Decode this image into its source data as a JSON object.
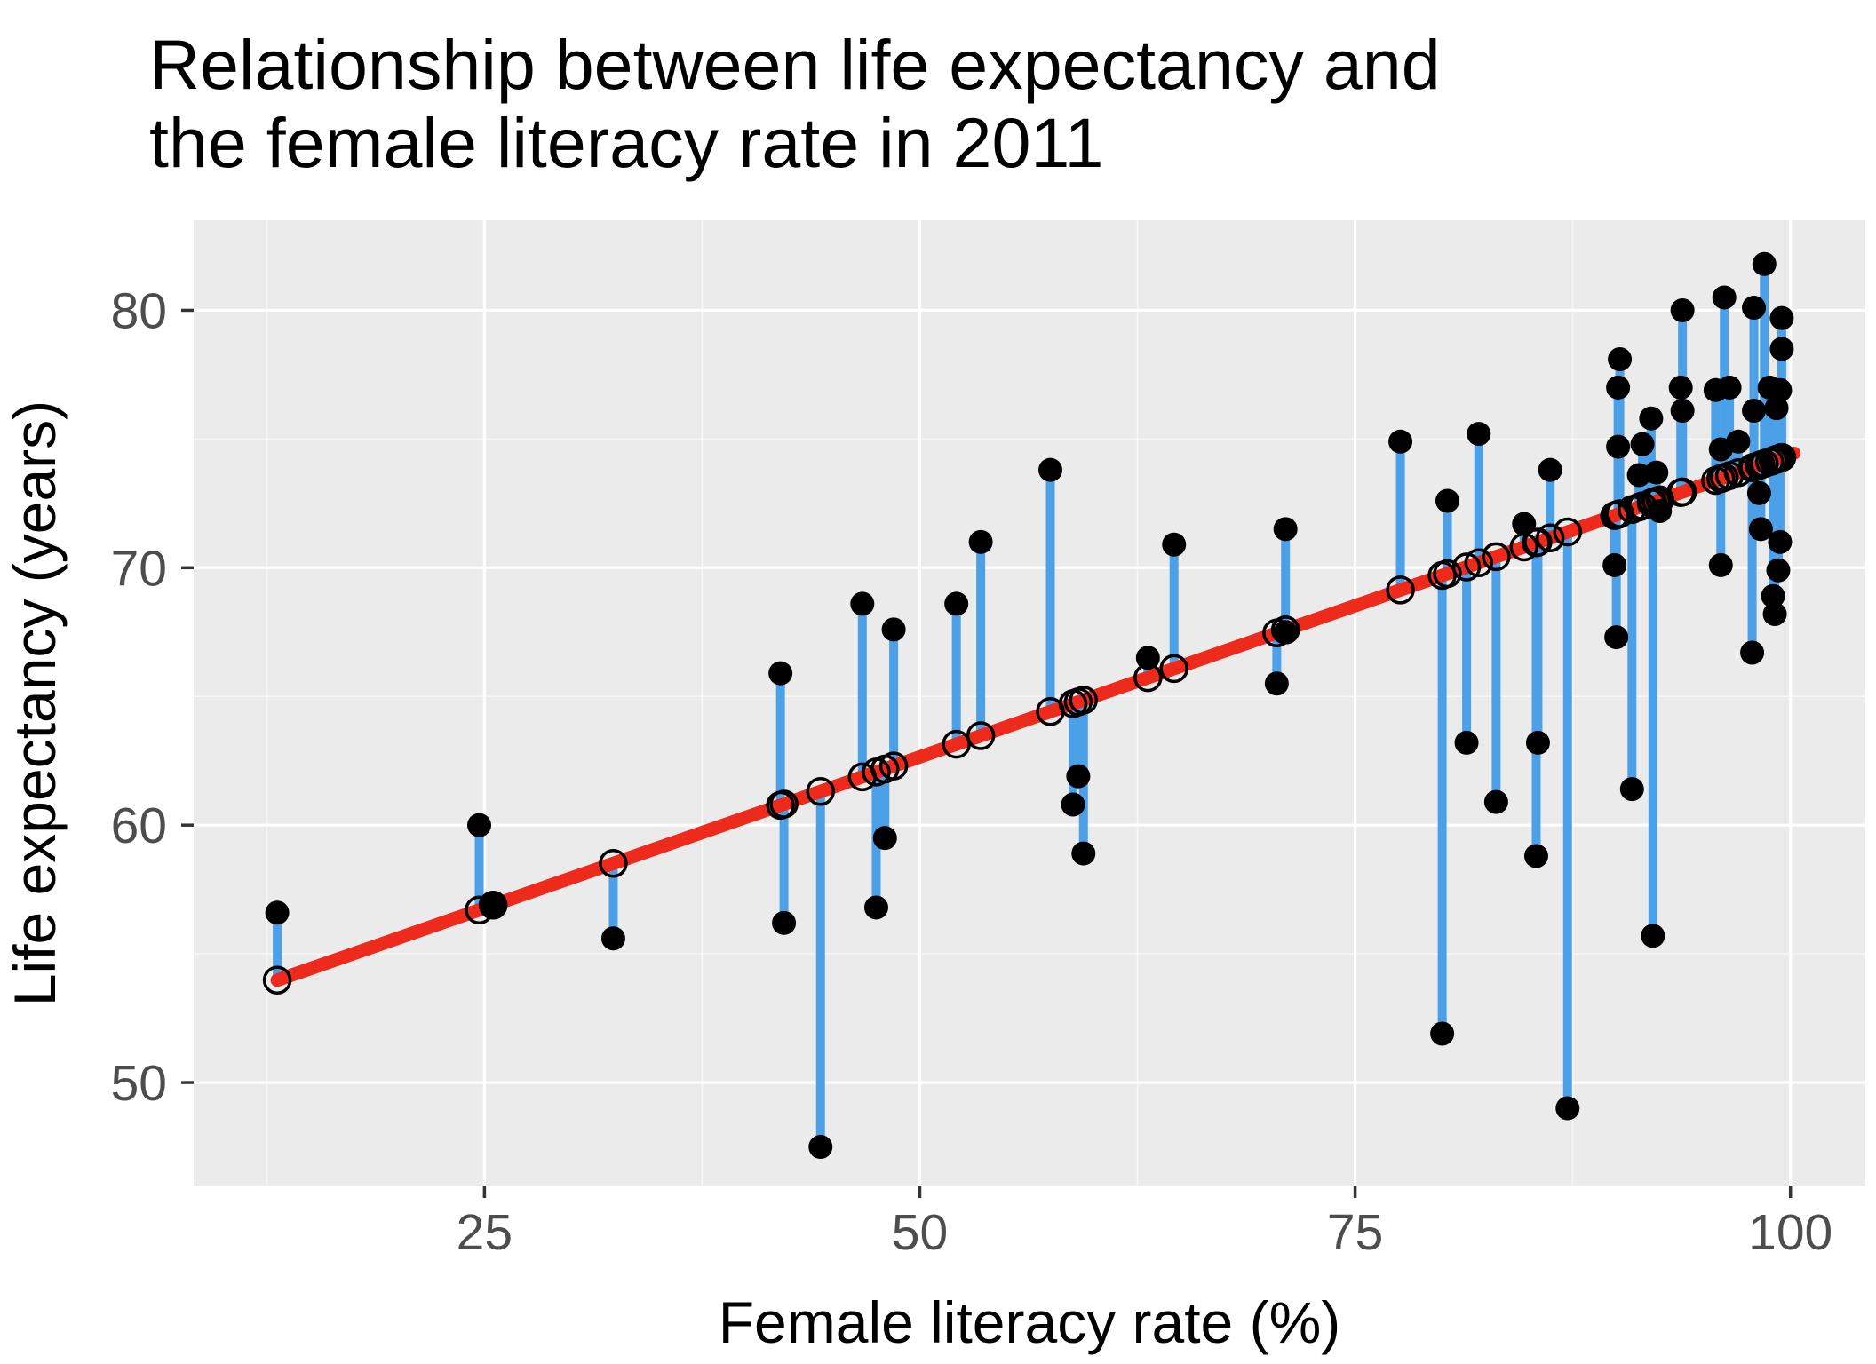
{
  "chart_data": {
    "type": "scatter",
    "title_line1": "Relationship between life expectancy and",
    "title_line2": " the female literacy rate in 2011",
    "xlabel": "Female literacy rate (%)",
    "ylabel": "Life expectancy (years)",
    "xlim": [
      8.3,
      104.3
    ],
    "ylim": [
      46.0,
      83.5
    ],
    "x_ticks": [
      25,
      50,
      75,
      100
    ],
    "y_ticks": [
      50,
      60,
      70,
      80
    ],
    "x_minor_ticks": [
      12.5,
      37.5,
      62.5,
      87.5
    ],
    "y_minor_ticks": [
      55,
      65,
      75
    ],
    "grid": true,
    "legend_position": "none",
    "regression_line": {
      "intercept": 50.9,
      "slope": 0.235,
      "x_start": 13.1,
      "x_end": 100.2
    },
    "series_note": "black dots = observed (literacy %, life expectancy yrs); open circles = fitted values on red regression line; blue segments = residuals",
    "points": [
      {
        "x": 13.1,
        "y": 56.6
      },
      {
        "x": 24.7,
        "y": 60.0
      },
      {
        "x": 25.5,
        "y": 56.9
      },
      {
        "x": 32.4,
        "y": 55.6
      },
      {
        "x": 42.0,
        "y": 65.9
      },
      {
        "x": 42.2,
        "y": 56.2
      },
      {
        "x": 44.3,
        "y": 47.5
      },
      {
        "x": 46.7,
        "y": 68.6
      },
      {
        "x": 47.5,
        "y": 56.8
      },
      {
        "x": 48.0,
        "y": 59.5
      },
      {
        "x": 48.5,
        "y": 67.6
      },
      {
        "x": 52.1,
        "y": 68.6
      },
      {
        "x": 53.5,
        "y": 71.0
      },
      {
        "x": 57.5,
        "y": 73.8
      },
      {
        "x": 58.8,
        "y": 60.8
      },
      {
        "x": 59.1,
        "y": 61.9
      },
      {
        "x": 59.4,
        "y": 58.9
      },
      {
        "x": 63.1,
        "y": 66.5
      },
      {
        "x": 64.6,
        "y": 70.9
      },
      {
        "x": 70.5,
        "y": 65.5
      },
      {
        "x": 71.0,
        "y": 67.5
      },
      {
        "x": 71.0,
        "y": 71.5
      },
      {
        "x": 77.6,
        "y": 74.9
      },
      {
        "x": 80.0,
        "y": 51.9
      },
      {
        "x": 80.3,
        "y": 72.6
      },
      {
        "x": 81.4,
        "y": 63.2
      },
      {
        "x": 82.1,
        "y": 75.2
      },
      {
        "x": 83.1,
        "y": 60.9
      },
      {
        "x": 84.7,
        "y": 71.7
      },
      {
        "x": 85.4,
        "y": 58.8
      },
      {
        "x": 85.5,
        "y": 63.2
      },
      {
        "x": 86.2,
        "y": 73.8
      },
      {
        "x": 87.2,
        "y": 49.0
      },
      {
        "x": 89.9,
        "y": 70.1
      },
      {
        "x": 90.0,
        "y": 67.3
      },
      {
        "x": 90.1,
        "y": 74.7
      },
      {
        "x": 90.1,
        "y": 77.0
      },
      {
        "x": 90.2,
        "y": 78.1
      },
      {
        "x": 90.9,
        "y": 61.4
      },
      {
        "x": 91.3,
        "y": 73.6
      },
      {
        "x": 91.5,
        "y": 74.8
      },
      {
        "x": 92.0,
        "y": 75.8
      },
      {
        "x": 92.1,
        "y": 55.7
      },
      {
        "x": 92.3,
        "y": 73.7
      },
      {
        "x": 92.5,
        "y": 72.2
      },
      {
        "x": 93.7,
        "y": 77.0
      },
      {
        "x": 93.8,
        "y": 76.1
      },
      {
        "x": 93.8,
        "y": 80.0
      },
      {
        "x": 95.7,
        "y": 76.9
      },
      {
        "x": 96.0,
        "y": 70.1
      },
      {
        "x": 96.0,
        "y": 74.6
      },
      {
        "x": 96.2,
        "y": 80.5
      },
      {
        "x": 96.5,
        "y": 77.0
      },
      {
        "x": 97.0,
        "y": 74.9
      },
      {
        "x": 97.8,
        "y": 66.7
      },
      {
        "x": 97.9,
        "y": 76.1
      },
      {
        "x": 97.9,
        "y": 80.1
      },
      {
        "x": 98.2,
        "y": 72.9
      },
      {
        "x": 98.3,
        "y": 71.5
      },
      {
        "x": 98.5,
        "y": 81.8
      },
      {
        "x": 98.8,
        "y": 77.0
      },
      {
        "x": 99.0,
        "y": 68.9
      },
      {
        "x": 99.1,
        "y": 68.2
      },
      {
        "x": 99.2,
        "y": 76.2
      },
      {
        "x": 99.3,
        "y": 69.9
      },
      {
        "x": 99.4,
        "y": 71.0
      },
      {
        "x": 99.4,
        "y": 76.9
      },
      {
        "x": 99.5,
        "y": 78.5
      },
      {
        "x": 99.5,
        "y": 79.7
      }
    ],
    "colors": {
      "panel_background": "#EBEBEB",
      "grid_major": "#FFFFFF",
      "grid_minor": "#F5F5F5",
      "point": "#000000",
      "residual_segment": "#4BA0E8",
      "regression_line": "#ED2A1C",
      "fitted_circle_stroke": "#000000",
      "tick_text": "#4d4d4d",
      "tick_mark": "#333333"
    }
  }
}
